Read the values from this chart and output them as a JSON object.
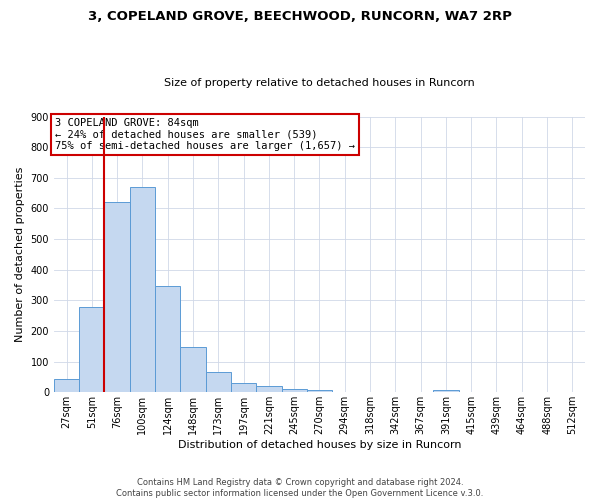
{
  "title": "3, COPELAND GROVE, BEECHWOOD, RUNCORN, WA7 2RP",
  "subtitle": "Size of property relative to detached houses in Runcorn",
  "xlabel": "Distribution of detached houses by size in Runcorn",
  "ylabel": "Number of detached properties",
  "bar_labels": [
    "27sqm",
    "51sqm",
    "76sqm",
    "100sqm",
    "124sqm",
    "148sqm",
    "173sqm",
    "197sqm",
    "221sqm",
    "245sqm",
    "270sqm",
    "294sqm",
    "318sqm",
    "342sqm",
    "367sqm",
    "391sqm",
    "415sqm",
    "439sqm",
    "464sqm",
    "488sqm",
    "512sqm"
  ],
  "bar_values": [
    45,
    280,
    622,
    670,
    348,
    148,
    65,
    30,
    20,
    10,
    8,
    0,
    0,
    0,
    0,
    7,
    0,
    0,
    0,
    0,
    0
  ],
  "bar_color": "#c5d8f0",
  "bar_edge_color": "#5b9bd5",
  "vline_x": 1.5,
  "vline_color": "#cc0000",
  "ylim": [
    0,
    900
  ],
  "yticks": [
    0,
    100,
    200,
    300,
    400,
    500,
    600,
    700,
    800,
    900
  ],
  "annotation_text": "3 COPELAND GROVE: 84sqm\n← 24% of detached houses are smaller (539)\n75% of semi-detached houses are larger (1,657) →",
  "annotation_box_color": "#ffffff",
  "annotation_box_edge_color": "#cc0000",
  "footer_text": "Contains HM Land Registry data © Crown copyright and database right 2024.\nContains public sector information licensed under the Open Government Licence v.3.0.",
  "bg_color": "#ffffff",
  "grid_color": "#d0d8e8",
  "title_fontsize": 9.5,
  "subtitle_fontsize": 8,
  "axis_label_fontsize": 8,
  "tick_fontsize": 7,
  "annotation_fontsize": 7.5
}
